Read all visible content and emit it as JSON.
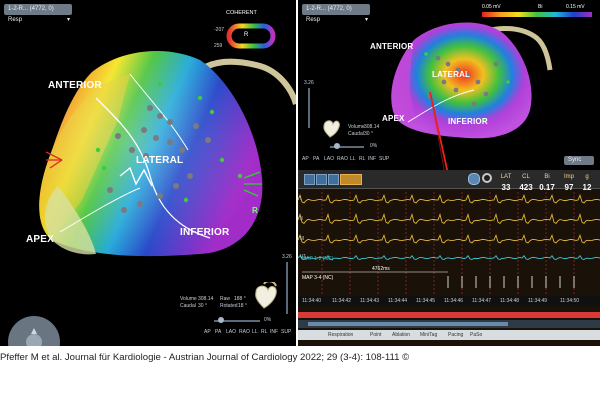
{
  "left_panel": {
    "map_selector": "1-2-R... (4772, 0) Resp",
    "colorbar": {
      "label": "COHERENT",
      "top_value": "-207",
      "bottom_value": "259",
      "letter": "R"
    },
    "anatomy_labels": {
      "anterior": "ANTERIOR",
      "lateral": "LATERAL",
      "apex": "APEX",
      "inferior": "INFERIOR",
      "r_marker": "R"
    },
    "scale_label": "3.26",
    "info": {
      "volume_label": "Volume",
      "volume_value": "308.14",
      "caudal_label": "Caudal",
      "caudal_value": "30 °",
      "raw_label": "Raw",
      "raw_value": "188 °",
      "rotate_label": "Rotated",
      "rotate_value": "18 °"
    },
    "slider_label": "0%",
    "views": [
      "AP",
      "PA",
      "LAO",
      "RAO",
      "LL",
      "RL",
      "INF",
      "SUP"
    ]
  },
  "right_panel": {
    "map_selector": "1-2-R... (4772, 0) Resp",
    "colorbar": {
      "low": "0.05 mV",
      "label": "Bi",
      "high": "0.15 mV"
    },
    "anatomy_labels": {
      "anterior": "ANTERIOR",
      "lateral": "LATERAL",
      "apex": "APEX",
      "inferior": "INFERIOR"
    },
    "scale_label": "3.26",
    "info": {
      "volume_label": "Volume",
      "volume_value": "308.14",
      "caudal_label": "Caudal",
      "caudal_value": "30 °"
    },
    "slider_label": "0%",
    "views": [
      "AP",
      "PA",
      "LAO",
      "RAO",
      "LL",
      "RL",
      "INF",
      "SUP"
    ],
    "sync_label": "Sync",
    "measurements": {
      "headers": [
        "LAT",
        "CL",
        "Bi",
        "Imp",
        "g"
      ],
      "values": [
        "33",
        "423",
        "0.17",
        "97",
        "12"
      ]
    },
    "traces": {
      "map12_label": "MAP 1-2 (NC)",
      "map34_label": "MAP 3-4 (NC)",
      "measure_label": "4762ms",
      "channel_labels": [
        "I",
        "II",
        "III",
        "V1"
      ]
    },
    "time_ticks": [
      "11:34:40",
      "11:34:42",
      "11:34:43",
      "11:34:44",
      "11:34:45",
      "11:34:46",
      "11:34:47",
      "11:34:48",
      "11:34:49",
      "11:34:50"
    ],
    "legend": [
      "Respiration",
      "Point",
      "Ablation",
      "MiniTag",
      "Pacing",
      "PaSo"
    ],
    "colors": {
      "trace_yellow": "#e0b43a",
      "trace_cyan": "#3ec6d6",
      "red_arrow": "#e8231b"
    }
  },
  "caption": "Pfeffer M et al. Journal für Kardiologie - Austrian Journal of Cardiology 2022; 29 (3-4): 108-111 ©"
}
